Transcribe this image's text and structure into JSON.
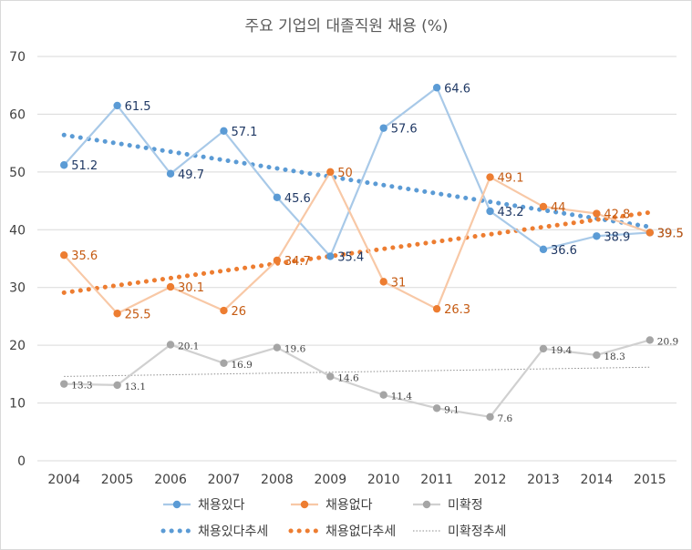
{
  "chart_data": {
    "type": "line",
    "title": "주요 기업의 대졸직원 채용 (%)",
    "categories": [
      "2004",
      "2005",
      "2006",
      "2007",
      "2008",
      "2009",
      "2010",
      "2011",
      "2012",
      "2013",
      "2014",
      "2015"
    ],
    "ylim": [
      0,
      70
    ],
    "yticks": [
      "0",
      "10",
      "20",
      "30",
      "40",
      "50",
      "60",
      "70"
    ],
    "series": [
      {
        "name": "채용있다",
        "color": "#5b9bd5",
        "line_color": "#a8c9e8",
        "label_color": "#1f3864",
        "values": [
          51.2,
          61.5,
          49.7,
          57.1,
          45.6,
          35.4,
          57.6,
          64.6,
          43.2,
          36.6,
          38.9,
          39.5
        ],
        "labels": [
          "51.2",
          "61.5",
          "49.7",
          "57.1",
          "45.6",
          "35.4",
          "57.6",
          "64.6",
          "43.2",
          "36.6",
          "38.9",
          "39.5"
        ]
      },
      {
        "name": "채용없다",
        "color": "#ed7d31",
        "line_color": "#f8c8a6",
        "label_color": "#c55a11",
        "values": [
          35.6,
          25.5,
          30.1,
          26.0,
          34.7,
          50.0,
          31.0,
          26.3,
          49.1,
          44.0,
          42.8,
          39.5
        ],
        "labels": [
          "35.6",
          "25.5",
          "30.1",
          "26",
          "34.7",
          "50",
          "31",
          "26.3",
          "49.1",
          "44",
          "42.8",
          "39.5"
        ]
      },
      {
        "name": "미확정",
        "color": "#a5a5a5",
        "line_color": "#d0d0d0",
        "label_color": "#404040",
        "values": [
          13.3,
          13.1,
          20.1,
          16.9,
          19.6,
          14.6,
          11.4,
          9.1,
          7.6,
          19.4,
          18.3,
          20.9
        ],
        "labels": [
          "13.3",
          "13.1",
          "20.1",
          "16.9",
          "19.6",
          "14.6",
          "11.4",
          "9.1",
          "7.6",
          "19.4",
          "18.3",
          "20.9"
        ]
      }
    ],
    "trendlines": [
      {
        "name": "채용있다추세",
        "color": "#5b9bd5",
        "style": "dots",
        "start": 56.4,
        "end": 40.5
      },
      {
        "name": "채용없다추세",
        "color": "#ed7d31",
        "style": "dots",
        "start": 29.1,
        "end": 43.0
      },
      {
        "name": "미확정추세",
        "color": "#8c8c8c",
        "style": "dotted",
        "start": 14.6,
        "end": 16.2
      }
    ],
    "legend": [
      "채용있다",
      "채용없다",
      "미확정",
      "채용있다추세",
      "채용없다추세",
      "미확정추세"
    ],
    "grid": true,
    "legend_position": "bottom"
  }
}
